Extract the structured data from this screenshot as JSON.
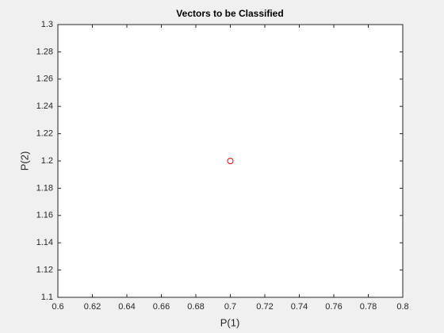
{
  "chart_data": {
    "type": "scatter",
    "title": "Vectors to be Classified",
    "x_label": "P(1)",
    "y_label": "P(2)",
    "x": [
      0.7
    ],
    "series": [
      {
        "color": "#ff0000",
        "values": [
          1.2
        ]
      }
    ],
    "xlim": [
      0.6,
      0.8
    ],
    "xticks": [
      0.6,
      0.62,
      0.64,
      0.66,
      0.68,
      0.7,
      0.72,
      0.74,
      0.76,
      0.78,
      0.8
    ],
    "ylim": [
      1.1,
      1.3
    ],
    "yticks": [
      1.1,
      1.12,
      1.14,
      1.16,
      1.18,
      1.2,
      1.22,
      1.24,
      1.26,
      1.28,
      1.3
    ],
    "grid": false
  }
}
